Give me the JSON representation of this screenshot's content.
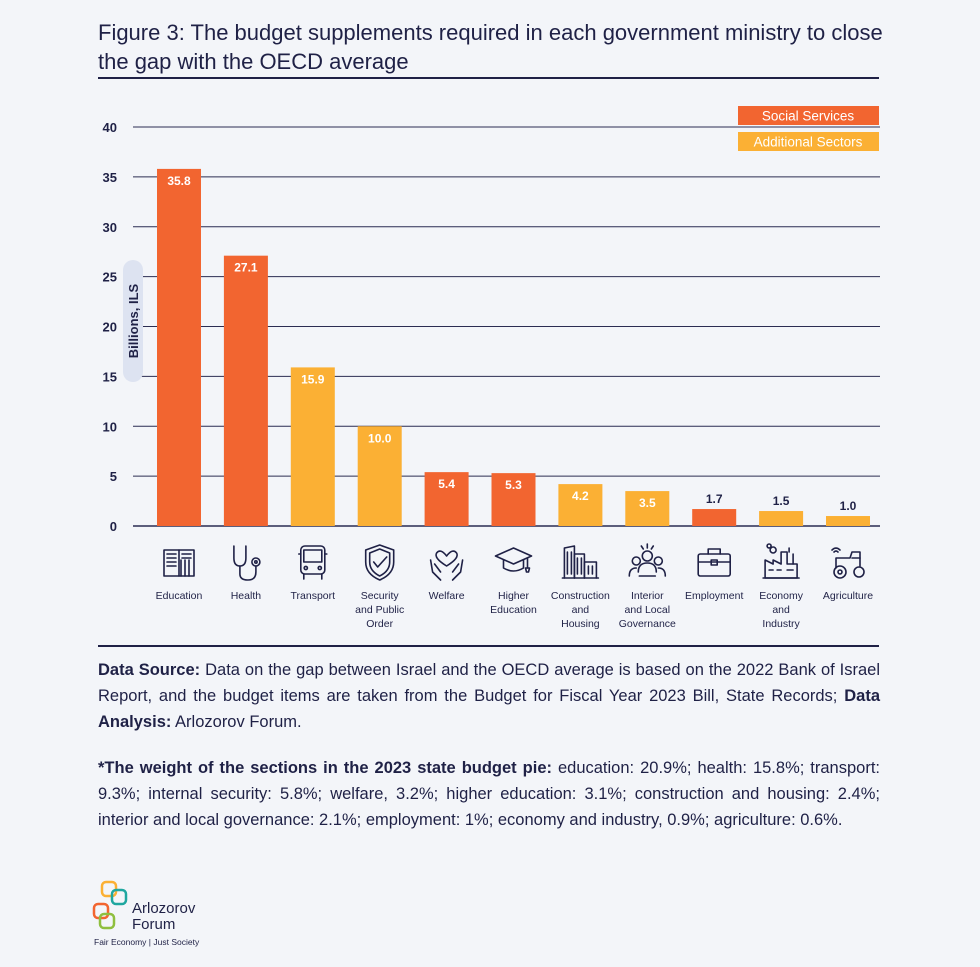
{
  "figure": {
    "title": "Figure 3: The budget supplements required in each government ministry to close the gap with the OECD average"
  },
  "chart_data": {
    "type": "bar",
    "ylabel": "Billions, ILS",
    "ylim": [
      0,
      40
    ],
    "yticks": [
      0,
      5,
      10,
      15,
      20,
      25,
      30,
      35,
      40
    ],
    "grid": true,
    "legend_position": "top-right",
    "legend": [
      {
        "key": "social",
        "label": "Social Services",
        "color": "#f26530"
      },
      {
        "key": "additional",
        "label": "Additional Sectors",
        "color": "#fbb034"
      }
    ],
    "categories": [
      {
        "lines": [
          "Education"
        ],
        "icon": "book-icon"
      },
      {
        "lines": [
          "Health"
        ],
        "icon": "stethoscope-icon"
      },
      {
        "lines": [
          "Transport"
        ],
        "icon": "bus-icon"
      },
      {
        "lines": [
          "Security",
          "and Public",
          "Order"
        ],
        "icon": "shield-check-icon"
      },
      {
        "lines": [
          "Welfare"
        ],
        "icon": "hands-heart-icon"
      },
      {
        "lines": [
          "Higher",
          "Education"
        ],
        "icon": "graduation-cap-icon"
      },
      {
        "lines": [
          "Construction",
          "and",
          "Housing"
        ],
        "icon": "buildings-icon"
      },
      {
        "lines": [
          "Interior",
          "and Local",
          "Governance"
        ],
        "icon": "people-group-icon"
      },
      {
        "lines": [
          "Employment"
        ],
        "icon": "briefcase-icon"
      },
      {
        "lines": [
          "Economy",
          "and",
          "Industry"
        ],
        "icon": "factory-icon"
      },
      {
        "lines": [
          "Agriculture"
        ],
        "icon": "tractor-icon"
      }
    ],
    "values": [
      35.8,
      27.1,
      15.9,
      10.0,
      5.4,
      5.3,
      4.2,
      3.5,
      1.7,
      1.5,
      1.0
    ],
    "value_labels": [
      "35.8",
      "27.1",
      "15.9",
      "10.0",
      "5.4",
      "5.3",
      "4.2",
      "3.5",
      "1.7",
      "1.5",
      "1.0"
    ],
    "groups": [
      "social",
      "social",
      "additional",
      "additional",
      "social",
      "social",
      "additional",
      "additional",
      "social",
      "additional",
      "additional"
    ]
  },
  "notes": {
    "source_label": "Data Source:",
    "source_text": " Data on the gap between Israel and the OECD average is based on the 2022 Bank of Israel Report, and the budget items are taken from the Budget for Fiscal Year 2023 Bill, State Records; ",
    "analysis_label": "Data Analysis:",
    "analysis_text": " Arlozorov Forum.",
    "weight_label": "*The weight of the sections in the 2023 state budget pie:",
    "weight_text": " education: 20.9%; health: 15.8%; transport: 9.3%; internal security: 5.8%; welfare, 3.2%; higher education: 3.1%; construction and housing: 2.4%; interior and local governance: 2.1%; employment: 1%; economy and industry, 0.9%; agriculture: 0.6%."
  },
  "logo": {
    "name_line1": "Arlozorov",
    "name_line2": "Forum",
    "tagline": "Fair Economy | Just Society",
    "colors": [
      "#f26530",
      "#fbb034",
      "#1fa7a0",
      "#8fbf3f"
    ]
  }
}
